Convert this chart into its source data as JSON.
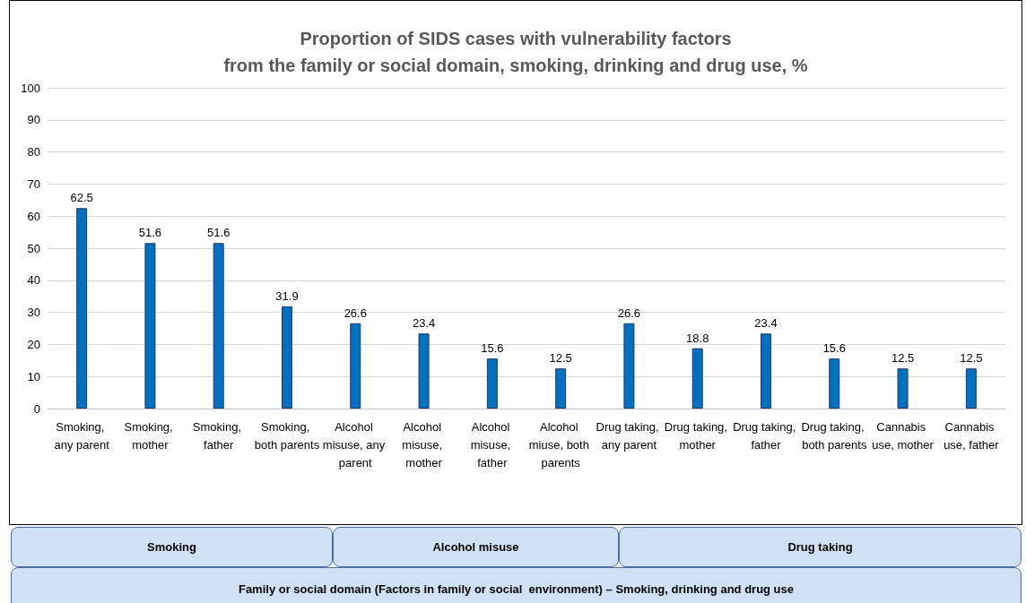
{
  "chart_data": {
    "type": "bar",
    "title": "Proportion of SIDS cases with vulnerability factors\nfrom the family or social domain, smoking, drinking and drug use, %",
    "categories": [
      "Smoking, any parent",
      "Smoking, mother",
      "Smoking, father",
      "Smoking, both parents",
      "Alcohol misuse, any parent",
      "Alcohol misuse, mother",
      "Alcohol misuse, father",
      "Alcohol miuse, both parents",
      "Drug taking, any parent",
      "Drug taking, mother",
      "Drug taking, father",
      "Drug taking, both parents",
      "Cannabis use, mother",
      "Cannabis use, father"
    ],
    "values": [
      62.5,
      51.6,
      51.6,
      31.9,
      26.6,
      23.4,
      15.6,
      12.5,
      26.6,
      18.8,
      23.4,
      15.6,
      12.5,
      12.5
    ],
    "color": "#0070c0",
    "ylim": [
      0,
      100
    ],
    "yticks": [
      0,
      10,
      20,
      30,
      40,
      50,
      60,
      70,
      80,
      90,
      100
    ],
    "grid": "y",
    "data_labels": true,
    "annotations": [
      "Smoking",
      "Alcohol misuse",
      "Drug taking",
      "Family or social domain (Factors in family or social  environment) – Smoking, drinking and drug use"
    ]
  }
}
